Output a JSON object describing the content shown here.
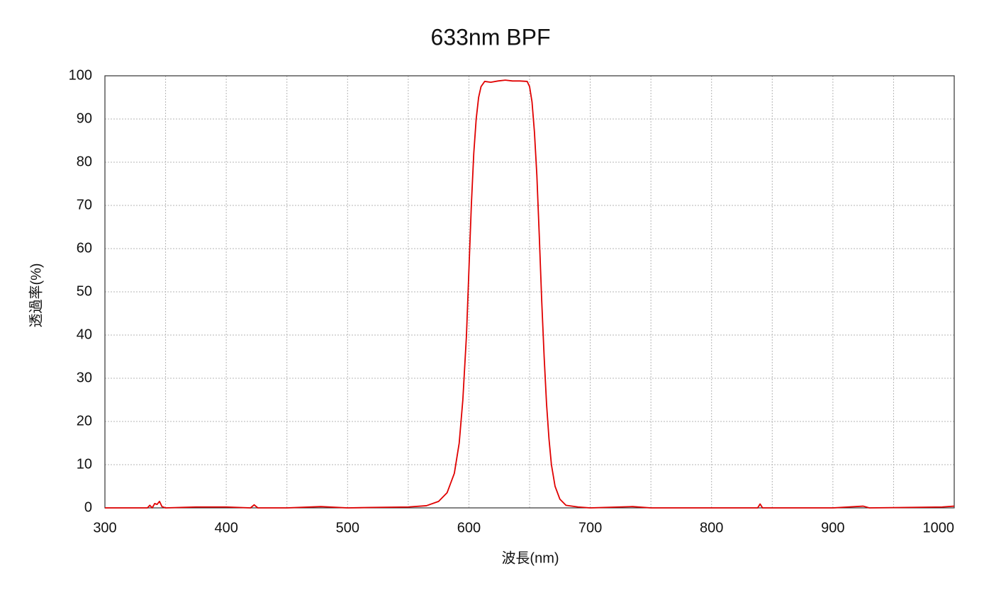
{
  "chart_data": {
    "type": "line",
    "title": "633nm BPF",
    "x_label": "波長(nm)",
    "y_label": "透過率(%)",
    "xlim": [
      300,
      1000
    ],
    "xticks": [
      300,
      400,
      500,
      600,
      700,
      800,
      900,
      1000
    ],
    "x_minor_ticks": [
      350,
      450,
      550,
      650,
      750,
      850,
      950
    ],
    "ylim": [
      0,
      100
    ],
    "yticks": [
      0,
      10,
      20,
      30,
      40,
      50,
      60,
      70,
      80,
      90,
      100
    ],
    "grid": true,
    "series": [
      {
        "color": "#e00000",
        "x": [
          300,
          335,
          337,
          339,
          341,
          343,
          345,
          347,
          350,
          375,
          400,
          420,
          423,
          426,
          450,
          478,
          500,
          520,
          550,
          565,
          575,
          582,
          588,
          592,
          595,
          598,
          600,
          602,
          604,
          606,
          608,
          610,
          613,
          618,
          624,
          630,
          636,
          642,
          648,
          650,
          652,
          654,
          656,
          658,
          660,
          662,
          664,
          666,
          668,
          671,
          675,
          680,
          690,
          700,
          735,
          750,
          838,
          840,
          842,
          900,
          925,
          930,
          990,
          1000
        ],
        "values": [
          0,
          0,
          0.6,
          0,
          1.0,
          0.8,
          1.5,
          0.3,
          0,
          0.2,
          0.2,
          0,
          0.7,
          0,
          0,
          0.3,
          0,
          0.1,
          0.2,
          0.5,
          1.5,
          3.5,
          8,
          15,
          25,
          40,
          55,
          70,
          82,
          90,
          95,
          97.5,
          98.7,
          98.5,
          98.8,
          99,
          98.8,
          98.8,
          98.7,
          97.5,
          94,
          87,
          77,
          63,
          48,
          35,
          24,
          16,
          10,
          5,
          2,
          0.6,
          0.2,
          0,
          0.3,
          0,
          0,
          0.9,
          0,
          0,
          0.4,
          0,
          0.2,
          0.4
        ]
      }
    ]
  }
}
